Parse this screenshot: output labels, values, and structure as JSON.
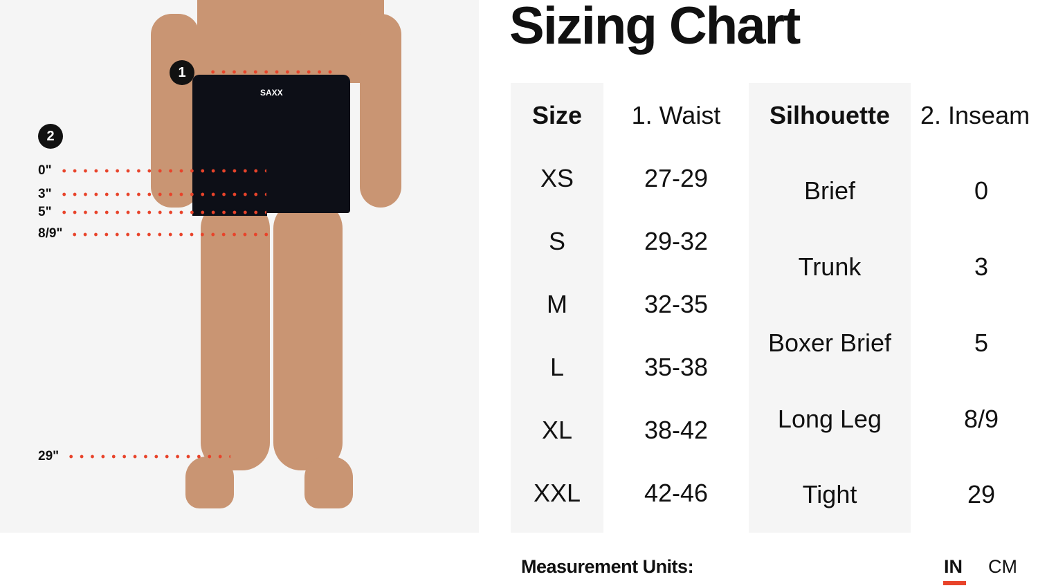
{
  "title": "Sizing Chart",
  "photo": {
    "brand_logo": "SAXX",
    "markers": [
      "1",
      "2"
    ],
    "inseam_labels": [
      "0\"",
      "3\"",
      "5\"",
      "8/9\"",
      "29\""
    ],
    "dot_color": "#e8432a"
  },
  "table": {
    "headers": {
      "size": "Size",
      "waist": "1.  Waist",
      "silhouette": "Silhouette",
      "inseam": "2.  Inseam"
    },
    "sizes": [
      {
        "size": "XS",
        "waist": "27-29"
      },
      {
        "size": "S",
        "waist": "29-32"
      },
      {
        "size": "M",
        "waist": "32-35"
      },
      {
        "size": "L",
        "waist": "35-38"
      },
      {
        "size": "XL",
        "waist": "38-42"
      },
      {
        "size": "XXL",
        "waist": "42-46"
      }
    ],
    "silhouettes": [
      {
        "name": "Brief",
        "inseam": "0"
      },
      {
        "name": "Trunk",
        "inseam": "3"
      },
      {
        "name": "Boxer Brief",
        "inseam": "5"
      },
      {
        "name": "Long Leg",
        "inseam": "8/9"
      },
      {
        "name": "Tight",
        "inseam": "29"
      }
    ]
  },
  "units": {
    "label": "Measurement Units:",
    "options": [
      "IN",
      "CM"
    ],
    "selected": "IN",
    "accent": "#e8432a"
  }
}
